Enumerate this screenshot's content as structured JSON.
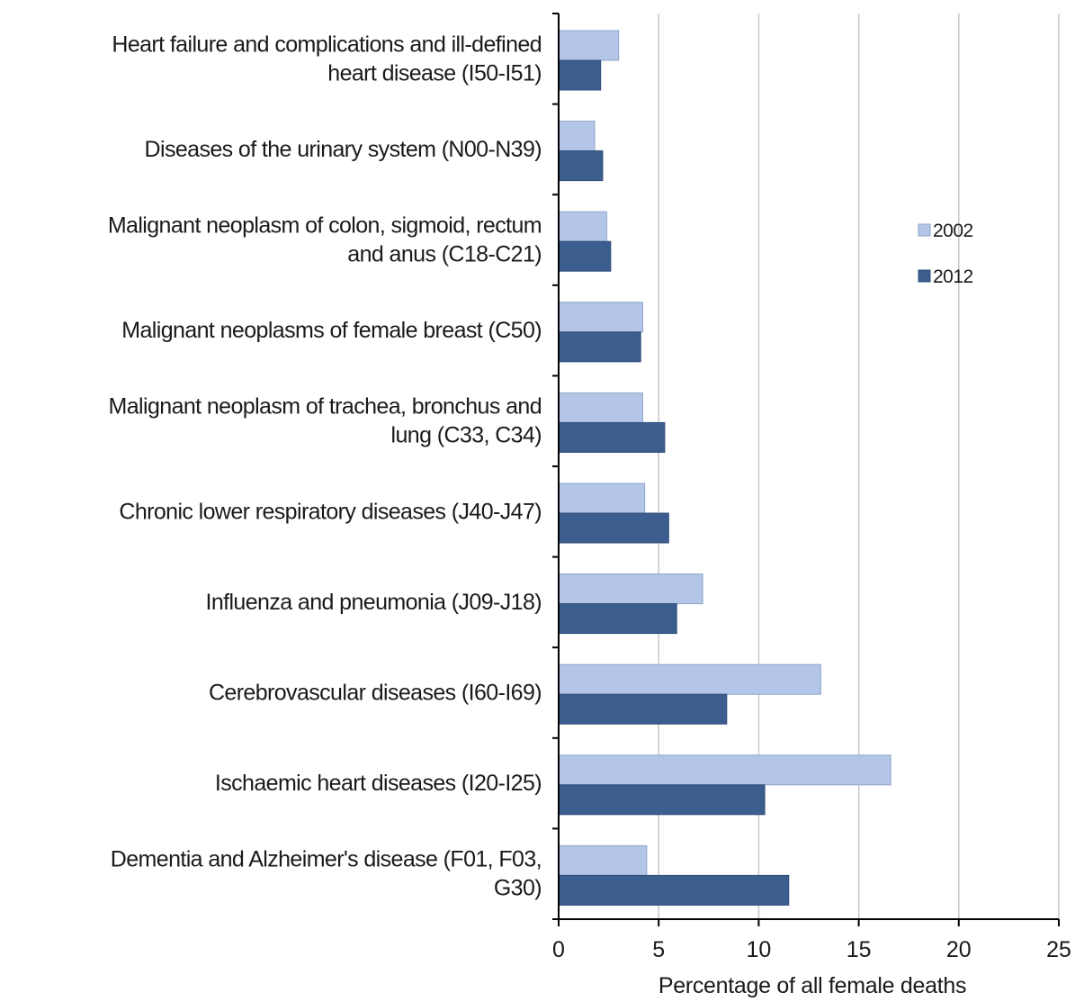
{
  "chart_data": {
    "type": "bar",
    "orientation": "horizontal",
    "categories": [
      "Heart failure and complications and ill-defined heart disease (I50-I51)",
      "Diseases of the urinary system (N00-N39)",
      "Malignant neoplasm of colon, sigmoid, rectum and anus (C18-C21)",
      "Malignant neoplasms of female breast (C50)",
      "Malignant neoplasm of trachea, bronchus and lung (C33, C34)",
      "Chronic lower respiratory diseases (J40-J47)",
      "Influenza and pneumonia (J09-J18)",
      "Cerebrovascular diseases (I60-I69)",
      "Ischaemic heart diseases (I20-I25)",
      "Dementia and Alzheimer's disease (F01, F03, G30)"
    ],
    "category_lines": [
      [
        "Heart failure and complications and ill-defined",
        "heart disease (I50-I51)"
      ],
      [
        "Diseases of the urinary system (N00-N39)"
      ],
      [
        "Malignant neoplasm of colon, sigmoid, rectum",
        "and anus (C18-C21)"
      ],
      [
        "Malignant neoplasms of female breast (C50)"
      ],
      [
        "Malignant neoplasm of trachea, bronchus and",
        "lung (C33, C34)"
      ],
      [
        "Chronic lower respiratory diseases (J40-J47)"
      ],
      [
        "Influenza and pneumonia (J09-J18)"
      ],
      [
        "Cerebrovascular diseases (I60-I69)"
      ],
      [
        "Ischaemic heart diseases (I20-I25)"
      ],
      [
        "Dementia and Alzheimer's disease (F01, F03,",
        "G30)"
      ]
    ],
    "series": [
      {
        "name": "2002",
        "color": "#b3c6e7",
        "values": [
          3.0,
          1.8,
          2.4,
          4.2,
          4.2,
          4.3,
          7.2,
          13.1,
          16.6,
          4.4
        ]
      },
      {
        "name": "2012",
        "color": "#3b5e8f",
        "values": [
          2.1,
          2.2,
          2.6,
          4.1,
          5.3,
          5.5,
          5.9,
          8.4,
          10.3,
          11.5
        ]
      }
    ],
    "xlabel": "Percentage of all female deaths",
    "xlim": [
      0,
      25
    ],
    "xticks": [
      "0",
      "5",
      "10",
      "15",
      "20",
      "25"
    ],
    "grid": "vertical",
    "legend_position": "right"
  }
}
